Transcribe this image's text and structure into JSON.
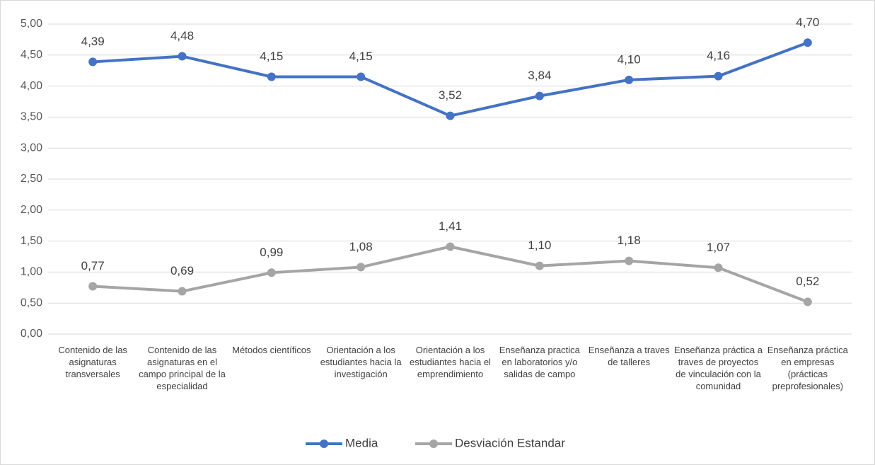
{
  "chart_data": {
    "type": "line",
    "categories": [
      "Contenido de las asignaturas transversales",
      "Contenido de las asignaturas en el campo principal de la especialidad",
      "Métodos científicos",
      "Orientación a los estudiantes hacia la investigación",
      "Orientación a los estudiantes hacia el emprendimiento",
      "Enseñanza practica en laboratorios y/o salidas de campo",
      "Enseñanza a traves de talleres",
      "Enseñanza práctica a traves de proyectos de vinculación con la comunidad",
      "Enseñanza práctica en empresas (prácticas preprofesionales)"
    ],
    "series": [
      {
        "name": "Media",
        "color": "#4472c4",
        "values": [
          4.39,
          4.48,
          4.15,
          4.15,
          3.52,
          3.84,
          4.1,
          4.16,
          4.7
        ],
        "value_labels": [
          "4,39",
          "4,48",
          "4,15",
          "4,15",
          "3,52",
          "3,84",
          "4,10",
          "4,16",
          "4,70"
        ]
      },
      {
        "name": "Desviación Estandar",
        "color": "#a5a5a5",
        "values": [
          0.77,
          0.69,
          0.99,
          1.08,
          1.41,
          1.1,
          1.18,
          1.07,
          0.52
        ],
        "value_labels": [
          "0,77",
          "0,69",
          "0,99",
          "1,08",
          "1,41",
          "1,10",
          "1,18",
          "1,07",
          "0,52"
        ]
      }
    ],
    "ylim": [
      0,
      5
    ],
    "yticks": [
      {
        "value": 0,
        "label": "0,00"
      },
      {
        "value": 0.5,
        "label": "0,50"
      },
      {
        "value": 1,
        "label": "1,00"
      },
      {
        "value": 1.5,
        "label": "1,50"
      },
      {
        "value": 2,
        "label": "2,00"
      },
      {
        "value": 2.5,
        "label": "2,50"
      },
      {
        "value": 3,
        "label": "3,00"
      },
      {
        "value": 3.5,
        "label": "3,50"
      },
      {
        "value": 4,
        "label": "4,00"
      },
      {
        "value": 4.5,
        "label": "4,50"
      },
      {
        "value": 5,
        "label": "5,00"
      }
    ],
    "grid": true,
    "legend": "bottom"
  }
}
